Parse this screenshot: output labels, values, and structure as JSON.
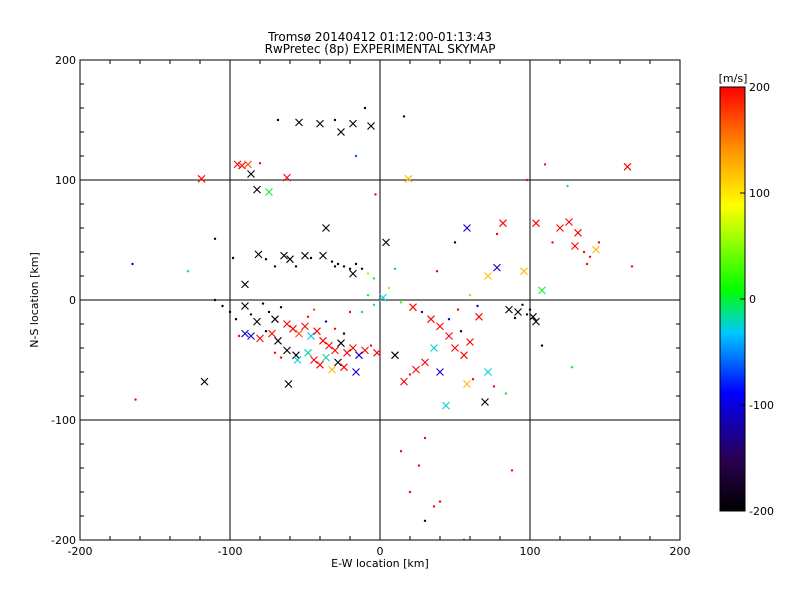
{
  "chart_data": {
    "type": "scatter",
    "title": "Tromsø 20140412 01:12:00-01:13:43",
    "subtitle": "RwPretec (8p) EXPERIMENTAL SKYMAP",
    "xlabel": "E-W location [km]",
    "ylabel": "N-S location [km]",
    "xlim": [
      -200,
      200
    ],
    "ylim": [
      -200,
      200
    ],
    "xticks": [
      -200,
      -100,
      0,
      100,
      200
    ],
    "yticks": [
      -200,
      -100,
      0,
      100,
      200
    ],
    "grid": true,
    "colorbar": {
      "label": "[m/s]",
      "range": [
        -200,
        200
      ],
      "ticks": [
        200,
        100,
        0,
        -100,
        -200
      ],
      "colors": [
        "#000000",
        "#2a0050",
        "#0000ff",
        "#00c8ff",
        "#00ff00",
        "#ffff00",
        "#ff8c00",
        "#ff0000"
      ]
    },
    "markers": [
      "cross",
      "dot"
    ],
    "points": [
      {
        "x": -119,
        "y": 101,
        "v": 200,
        "m": "cross"
      },
      {
        "x": -95,
        "y": 113,
        "v": 200,
        "m": "cross"
      },
      {
        "x": -92,
        "y": 112,
        "v": 200,
        "m": "cross"
      },
      {
        "x": -88,
        "y": 113,
        "v": 170,
        "m": "cross"
      },
      {
        "x": -80,
        "y": 114,
        "v": 200,
        "m": "dot"
      },
      {
        "x": -62,
        "y": 102,
        "v": 200,
        "m": "cross"
      },
      {
        "x": -74,
        "y": 90,
        "v": 20,
        "m": "cross"
      },
      {
        "x": -82,
        "y": 92,
        "v": -200,
        "m": "cross"
      },
      {
        "x": -86,
        "y": 105,
        "v": -200,
        "m": "cross"
      },
      {
        "x": -68,
        "y": 150,
        "v": -200,
        "m": "dot"
      },
      {
        "x": -54,
        "y": 148,
        "v": -200,
        "m": "cross"
      },
      {
        "x": -40,
        "y": 147,
        "v": -200,
        "m": "cross"
      },
      {
        "x": -30,
        "y": 150,
        "v": -200,
        "m": "dot"
      },
      {
        "x": -26,
        "y": 140,
        "v": -200,
        "m": "cross"
      },
      {
        "x": -18,
        "y": 147,
        "v": -200,
        "m": "cross"
      },
      {
        "x": -10,
        "y": 160,
        "v": -200,
        "m": "dot"
      },
      {
        "x": -6,
        "y": 145,
        "v": -200,
        "m": "cross"
      },
      {
        "x": 16,
        "y": 153,
        "v": -200,
        "m": "dot"
      },
      {
        "x": -16,
        "y": 120,
        "v": -60,
        "m": "dot"
      },
      {
        "x": -3,
        "y": 88,
        "v": 200,
        "m": "dot"
      },
      {
        "x": 19,
        "y": 101,
        "v": 120,
        "m": "cross"
      },
      {
        "x": 165,
        "y": 111,
        "v": 200,
        "m": "cross"
      },
      {
        "x": 110,
        "y": 113,
        "v": 200,
        "m": "dot"
      },
      {
        "x": 98,
        "y": 100,
        "v": 200,
        "m": "dot"
      },
      {
        "x": 125,
        "y": 95,
        "v": -10,
        "m": "dot"
      },
      {
        "x": -165,
        "y": 30,
        "v": -100,
        "m": "dot"
      },
      {
        "x": -128,
        "y": 24,
        "v": -10,
        "m": "dot"
      },
      {
        "x": -110,
        "y": 51,
        "v": -200,
        "m": "dot"
      },
      {
        "x": -98,
        "y": 35,
        "v": -200,
        "m": "dot"
      },
      {
        "x": -90,
        "y": 13,
        "v": -200,
        "m": "cross"
      },
      {
        "x": -81,
        "y": 38,
        "v": -200,
        "m": "cross"
      },
      {
        "x": -76,
        "y": 34,
        "v": -200,
        "m": "dot"
      },
      {
        "x": -70,
        "y": 28,
        "v": -200,
        "m": "dot"
      },
      {
        "x": -64,
        "y": 37,
        "v": -200,
        "m": "cross"
      },
      {
        "x": -60,
        "y": 34,
        "v": -200,
        "m": "cross"
      },
      {
        "x": -56,
        "y": 28,
        "v": -200,
        "m": "dot"
      },
      {
        "x": -50,
        "y": 37,
        "v": -200,
        "m": "cross"
      },
      {
        "x": -46,
        "y": 35,
        "v": -200,
        "m": "dot"
      },
      {
        "x": -38,
        "y": 37,
        "v": -200,
        "m": "cross"
      },
      {
        "x": -36,
        "y": 60,
        "v": -200,
        "m": "cross"
      },
      {
        "x": -32,
        "y": 32,
        "v": -200,
        "m": "dot"
      },
      {
        "x": -28,
        "y": 30,
        "v": -200,
        "m": "dot"
      },
      {
        "x": -24,
        "y": 28,
        "v": -200,
        "m": "dot"
      },
      {
        "x": -20,
        "y": 26,
        "v": -200,
        "m": "dot"
      },
      {
        "x": -16,
        "y": 30,
        "v": -200,
        "m": "dot"
      },
      {
        "x": -12,
        "y": 26,
        "v": -200,
        "m": "dot"
      },
      {
        "x": -8,
        "y": 22,
        "v": 60,
        "m": "dot"
      },
      {
        "x": -4,
        "y": 18,
        "v": 0,
        "m": "dot"
      },
      {
        "x": 4,
        "y": 48,
        "v": -200,
        "m": "cross"
      },
      {
        "x": 10,
        "y": 26,
        "v": -20,
        "m": "dot"
      },
      {
        "x": -18,
        "y": 22,
        "v": -200,
        "m": "cross"
      },
      {
        "x": -30,
        "y": 28,
        "v": -200,
        "m": "dot"
      },
      {
        "x": -110,
        "y": 0,
        "v": -200,
        "m": "dot"
      },
      {
        "x": -105,
        "y": -5,
        "v": -200,
        "m": "dot"
      },
      {
        "x": -100,
        "y": -10,
        "v": -200,
        "m": "dot"
      },
      {
        "x": -96,
        "y": -16,
        "v": -200,
        "m": "dot"
      },
      {
        "x": -90,
        "y": -5,
        "v": -200,
        "m": "cross"
      },
      {
        "x": -86,
        "y": -12,
        "v": -200,
        "m": "dot"
      },
      {
        "x": -82,
        "y": -18,
        "v": -200,
        "m": "cross"
      },
      {
        "x": -78,
        "y": -3,
        "v": -200,
        "m": "dot"
      },
      {
        "x": -74,
        "y": -10,
        "v": -200,
        "m": "dot"
      },
      {
        "x": -70,
        "y": -16,
        "v": -200,
        "m": "cross"
      },
      {
        "x": -66,
        "y": -6,
        "v": -200,
        "m": "dot"
      },
      {
        "x": -62,
        "y": -20,
        "v": 200,
        "m": "cross"
      },
      {
        "x": -58,
        "y": -24,
        "v": 200,
        "m": "cross"
      },
      {
        "x": -54,
        "y": -28,
        "v": 170,
        "m": "cross"
      },
      {
        "x": -50,
        "y": -22,
        "v": 200,
        "m": "cross"
      },
      {
        "x": -46,
        "y": -30,
        "v": -30,
        "m": "cross"
      },
      {
        "x": -42,
        "y": -26,
        "v": 200,
        "m": "cross"
      },
      {
        "x": -38,
        "y": -34,
        "v": 200,
        "m": "cross"
      },
      {
        "x": -34,
        "y": -38,
        "v": 200,
        "m": "cross"
      },
      {
        "x": -30,
        "y": -42,
        "v": 200,
        "m": "cross"
      },
      {
        "x": -26,
        "y": -36,
        "v": -200,
        "m": "cross"
      },
      {
        "x": -22,
        "y": -44,
        "v": 200,
        "m": "cross"
      },
      {
        "x": -18,
        "y": -40,
        "v": 200,
        "m": "cross"
      },
      {
        "x": -14,
        "y": -46,
        "v": -100,
        "m": "cross"
      },
      {
        "x": -10,
        "y": -42,
        "v": 200,
        "m": "cross"
      },
      {
        "x": -6,
        "y": -38,
        "v": 200,
        "m": "dot"
      },
      {
        "x": -68,
        "y": -34,
        "v": -200,
        "m": "cross"
      },
      {
        "x": -72,
        "y": -28,
        "v": 200,
        "m": "cross"
      },
      {
        "x": -76,
        "y": -26,
        "v": -200,
        "m": "dot"
      },
      {
        "x": -80,
        "y": -32,
        "v": 200,
        "m": "cross"
      },
      {
        "x": -86,
        "y": -30,
        "v": -100,
        "m": "cross"
      },
      {
        "x": -62,
        "y": -42,
        "v": -200,
        "m": "cross"
      },
      {
        "x": -56,
        "y": -46,
        "v": -200,
        "m": "cross"
      },
      {
        "x": -48,
        "y": -44,
        "v": -10,
        "m": "cross"
      },
      {
        "x": -44,
        "y": -50,
        "v": 200,
        "m": "cross"
      },
      {
        "x": -40,
        "y": -54,
        "v": 200,
        "m": "cross"
      },
      {
        "x": -36,
        "y": -48,
        "v": -10,
        "m": "cross"
      },
      {
        "x": -32,
        "y": -58,
        "v": 120,
        "m": "cross"
      },
      {
        "x": -28,
        "y": -52,
        "v": -200,
        "m": "cross"
      },
      {
        "x": -24,
        "y": -56,
        "v": 200,
        "m": "cross"
      },
      {
        "x": -16,
        "y": -60,
        "v": -100,
        "m": "cross"
      },
      {
        "x": -61,
        "y": -70,
        "v": -200,
        "m": "cross"
      },
      {
        "x": -117,
        "y": -68,
        "v": -200,
        "m": "cross"
      },
      {
        "x": -163,
        "y": -83,
        "v": 200,
        "m": "dot"
      },
      {
        "x": -90,
        "y": -28,
        "v": -100,
        "m": "cross"
      },
      {
        "x": -55,
        "y": -50,
        "v": -20,
        "m": "cross"
      },
      {
        "x": -2,
        "y": -44,
        "v": 200,
        "m": "cross"
      },
      {
        "x": 10,
        "y": -46,
        "v": -200,
        "m": "cross"
      },
      {
        "x": -12,
        "y": -10,
        "v": 0,
        "m": "dot"
      },
      {
        "x": -8,
        "y": 4,
        "v": 30,
        "m": "dot"
      },
      {
        "x": -4,
        "y": -4,
        "v": 0,
        "m": "dot"
      },
      {
        "x": 2,
        "y": 2,
        "v": -20,
        "m": "cross"
      },
      {
        "x": 6,
        "y": 10,
        "v": 60,
        "m": "dot"
      },
      {
        "x": 14,
        "y": -2,
        "v": 40,
        "m": "dot"
      },
      {
        "x": 22,
        "y": -6,
        "v": 200,
        "m": "cross"
      },
      {
        "x": 28,
        "y": -10,
        "v": -100,
        "m": "dot"
      },
      {
        "x": 34,
        "y": -16,
        "v": 200,
        "m": "cross"
      },
      {
        "x": 40,
        "y": -22,
        "v": 200,
        "m": "cross"
      },
      {
        "x": 46,
        "y": -30,
        "v": 200,
        "m": "cross"
      },
      {
        "x": 50,
        "y": -40,
        "v": 200,
        "m": "cross"
      },
      {
        "x": 56,
        "y": -46,
        "v": 200,
        "m": "cross"
      },
      {
        "x": 60,
        "y": -35,
        "v": 200,
        "m": "cross"
      },
      {
        "x": 36,
        "y": -40,
        "v": -20,
        "m": "cross"
      },
      {
        "x": 30,
        "y": -52,
        "v": 200,
        "m": "cross"
      },
      {
        "x": 20,
        "y": -62,
        "v": 200,
        "m": "dot"
      },
      {
        "x": 16,
        "y": -68,
        "v": 200,
        "m": "cross"
      },
      {
        "x": 24,
        "y": -58,
        "v": 200,
        "m": "cross"
      },
      {
        "x": 40,
        "y": -60,
        "v": -100,
        "m": "cross"
      },
      {
        "x": 44,
        "y": -88,
        "v": -20,
        "m": "cross"
      },
      {
        "x": 58,
        "y": -70,
        "v": 120,
        "m": "cross"
      },
      {
        "x": 62,
        "y": -66,
        "v": 200,
        "m": "dot"
      },
      {
        "x": 70,
        "y": -85,
        "v": -200,
        "m": "cross"
      },
      {
        "x": 76,
        "y": -72,
        "v": 200,
        "m": "dot"
      },
      {
        "x": 84,
        "y": -78,
        "v": 20,
        "m": "dot"
      },
      {
        "x": 72,
        "y": -60,
        "v": -20,
        "m": "cross"
      },
      {
        "x": 72,
        "y": 20,
        "v": 120,
        "m": "cross"
      },
      {
        "x": 78,
        "y": 27,
        "v": -100,
        "m": "cross"
      },
      {
        "x": 58,
        "y": 60,
        "v": -100,
        "m": "cross"
      },
      {
        "x": 96,
        "y": 24,
        "v": 120,
        "m": "cross"
      },
      {
        "x": 108,
        "y": 8,
        "v": 20,
        "m": "cross"
      },
      {
        "x": 86,
        "y": -8,
        "v": -200,
        "m": "cross"
      },
      {
        "x": 92,
        "y": -10,
        "v": -200,
        "m": "cross"
      },
      {
        "x": 98,
        "y": -12,
        "v": -200,
        "m": "dot"
      },
      {
        "x": 102,
        "y": -14,
        "v": -200,
        "m": "cross"
      },
      {
        "x": 104,
        "y": -18,
        "v": -200,
        "m": "cross"
      },
      {
        "x": 100,
        "y": -8,
        "v": -200,
        "m": "dot"
      },
      {
        "x": 95,
        "y": -4,
        "v": -200,
        "m": "dot"
      },
      {
        "x": 90,
        "y": -15,
        "v": -200,
        "m": "dot"
      },
      {
        "x": 108,
        "y": -38,
        "v": -200,
        "m": "dot"
      },
      {
        "x": 65,
        "y": -5,
        "v": -100,
        "m": "dot"
      },
      {
        "x": 120,
        "y": 60,
        "v": 200,
        "m": "cross"
      },
      {
        "x": 126,
        "y": 65,
        "v": 200,
        "m": "cross"
      },
      {
        "x": 132,
        "y": 56,
        "v": 200,
        "m": "cross"
      },
      {
        "x": 130,
        "y": 45,
        "v": 200,
        "m": "cross"
      },
      {
        "x": 136,
        "y": 40,
        "v": 200,
        "m": "dot"
      },
      {
        "x": 140,
        "y": 36,
        "v": 200,
        "m": "dot"
      },
      {
        "x": 144,
        "y": 42,
        "v": 120,
        "m": "cross"
      },
      {
        "x": 138,
        "y": 30,
        "v": 200,
        "m": "dot"
      },
      {
        "x": 146,
        "y": 48,
        "v": 200,
        "m": "dot"
      },
      {
        "x": 104,
        "y": 64,
        "v": 200,
        "m": "cross"
      },
      {
        "x": 82,
        "y": 64,
        "v": 200,
        "m": "cross"
      },
      {
        "x": 78,
        "y": 55,
        "v": 200,
        "m": "dot"
      },
      {
        "x": 115,
        "y": 48,
        "v": 200,
        "m": "dot"
      },
      {
        "x": 168,
        "y": 28,
        "v": 200,
        "m": "dot"
      },
      {
        "x": 30,
        "y": -115,
        "v": 200,
        "m": "dot"
      },
      {
        "x": 26,
        "y": -138,
        "v": 200,
        "m": "dot"
      },
      {
        "x": 20,
        "y": -160,
        "v": 200,
        "m": "dot"
      },
      {
        "x": 40,
        "y": -168,
        "v": 200,
        "m": "dot"
      },
      {
        "x": 36,
        "y": -172,
        "v": 200,
        "m": "dot"
      },
      {
        "x": 30,
        "y": -184,
        "v": -200,
        "m": "dot"
      },
      {
        "x": 56,
        "y": -200,
        "v": 200,
        "m": "dot"
      },
      {
        "x": 88,
        "y": -142,
        "v": 200,
        "m": "dot"
      },
      {
        "x": 14,
        "y": -126,
        "v": 200,
        "m": "dot"
      },
      {
        "x": -48,
        "y": -14,
        "v": 200,
        "m": "dot"
      },
      {
        "x": -44,
        "y": -8,
        "v": 170,
        "m": "dot"
      },
      {
        "x": -36,
        "y": -18,
        "v": -100,
        "m": "dot"
      },
      {
        "x": -30,
        "y": -24,
        "v": 200,
        "m": "dot"
      },
      {
        "x": -24,
        "y": -28,
        "v": -200,
        "m": "dot"
      },
      {
        "x": -20,
        "y": -10,
        "v": 200,
        "m": "dot"
      },
      {
        "x": -70,
        "y": -44,
        "v": 200,
        "m": "dot"
      },
      {
        "x": -66,
        "y": -48,
        "v": 200,
        "m": "dot"
      },
      {
        "x": 46,
        "y": -16,
        "v": -100,
        "m": "dot"
      },
      {
        "x": 52,
        "y": -8,
        "v": 200,
        "m": "dot"
      },
      {
        "x": 60,
        "y": 4,
        "v": 120,
        "m": "dot"
      },
      {
        "x": 50,
        "y": 48,
        "v": -200,
        "m": "dot"
      },
      {
        "x": 38,
        "y": 24,
        "v": 200,
        "m": "dot"
      },
      {
        "x": 128,
        "y": -56,
        "v": 20,
        "m": "dot"
      },
      {
        "x": 66,
        "y": -14,
        "v": 200,
        "m": "cross"
      },
      {
        "x": 54,
        "y": -26,
        "v": -200,
        "m": "dot"
      },
      {
        "x": -94,
        "y": -30,
        "v": 200,
        "m": "dot"
      }
    ]
  }
}
